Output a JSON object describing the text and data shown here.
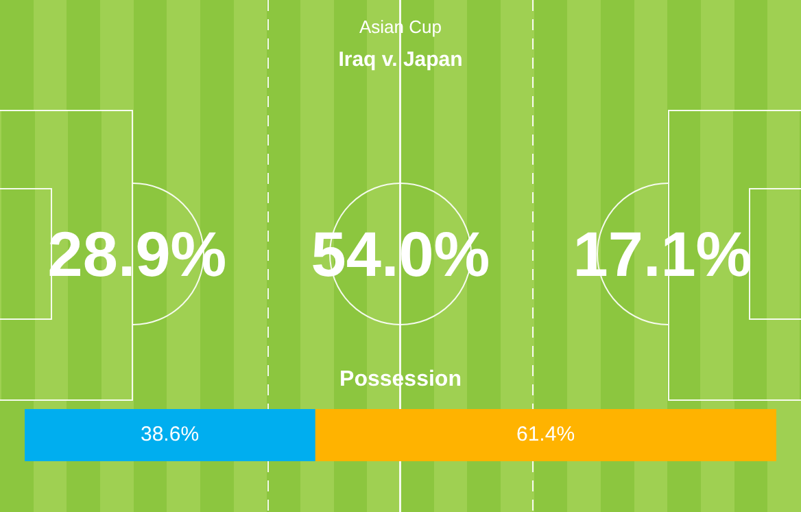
{
  "chart_data": [
    {
      "type": "other",
      "title": "Asian Cup",
      "subtitle": "Iraq v. Japan",
      "categories": [
        null,
        null,
        null
      ],
      "values": [
        28.9,
        54.0,
        17.1
      ],
      "value_labels": [
        "28.9%",
        "54.0%",
        "17.1%"
      ]
    },
    {
      "type": "bar",
      "orientation": "horizontal",
      "stacked": true,
      "title": "Possession",
      "categories": [
        null
      ],
      "xlim": [
        0,
        100
      ],
      "tick_labels": false,
      "series": [
        {
          "color": "#00aeef",
          "values": [
            38.6
          ],
          "value_labels": [
            "38.6%"
          ]
        },
        {
          "color": "#ffb300",
          "values": [
            61.4
          ],
          "value_labels": [
            "61.4%"
          ]
        }
      ]
    }
  ]
}
